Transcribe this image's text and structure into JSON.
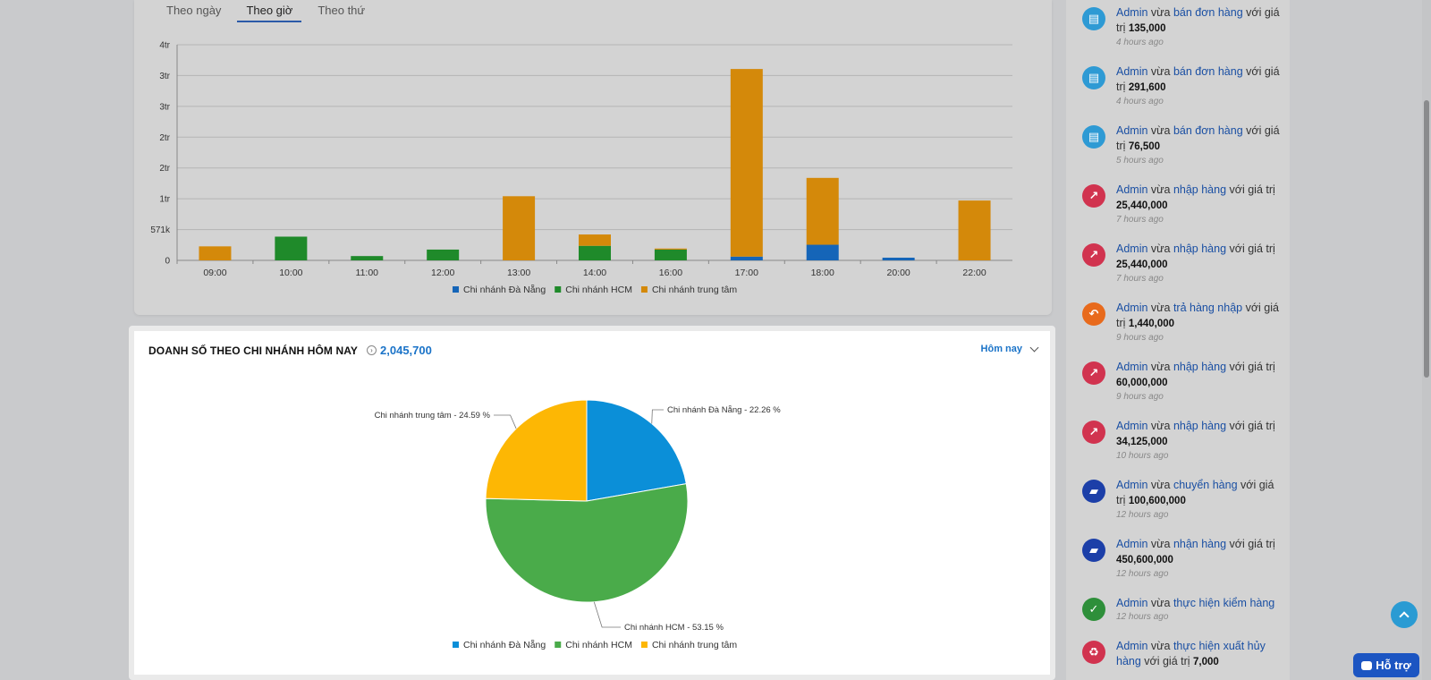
{
  "tabs": [
    "Theo ngày",
    "Theo giờ",
    "Theo thứ"
  ],
  "active_tab": 1,
  "chart_data": [
    {
      "type": "bar",
      "stacked": true,
      "categories": [
        "09:00",
        "10:00",
        "11:00",
        "12:00",
        "13:00",
        "14:00",
        "16:00",
        "17:00",
        "18:00",
        "20:00",
        "22:00"
      ],
      "y_tick_labels": [
        "0",
        "571k",
        "1tr",
        "2tr",
        "2tr",
        "3tr",
        "3tr",
        "4tr"
      ],
      "ylim": [
        0,
        4000000
      ],
      "series": [
        {
          "name": "Chi nhánh Đà Nẵng",
          "color": "#1565b8",
          "values": [
            0,
            0,
            0,
            0,
            0,
            0,
            0,
            70000,
            290000,
            50000,
            0
          ]
        },
        {
          "name": "Chi nhánh HCM",
          "color": "#1f8a2a",
          "values": [
            0,
            440000,
            80000,
            200000,
            0,
            270000,
            200000,
            0,
            0,
            0,
            0
          ]
        },
        {
          "name": "Chi nhánh trung tâm",
          "color": "#d4890a",
          "values": [
            260000,
            0,
            0,
            0,
            1190000,
            210000,
            20000,
            3480000,
            1240000,
            0,
            1110000
          ]
        }
      ],
      "legend_position": "bottom",
      "grid": true
    },
    {
      "type": "pie",
      "slices": [
        {
          "label": "Chi nhánh Đà Nẵng - 22.26 %",
          "name": "Chi nhánh Đà Nẵng",
          "value": 22.26,
          "color": "#0b8fd8"
        },
        {
          "label": "Chi nhánh HCM - 53.15 %",
          "name": "Chi nhánh HCM",
          "value": 53.15,
          "color": "#4aab4a"
        },
        {
          "label": "Chi nhánh trung tâm - 24.59 %",
          "name": "Chi nhánh trung tâm",
          "value": 24.59,
          "color": "#fdb704"
        }
      ],
      "legend_position": "bottom"
    }
  ],
  "pie_card": {
    "title": "DOANH SỐ THEO CHI NHÁNH HÔM NAY",
    "total": "2,045,700",
    "period": "Hôm nay"
  },
  "feed": [
    {
      "icon": "document-icon",
      "color": "#2e9ad4",
      "user": "Admin",
      "pre": "vừa",
      "action": "bán đơn hàng",
      "post": "với giá trị",
      "value": "135,000",
      "time": "4 hours ago"
    },
    {
      "icon": "document-icon",
      "color": "#2e9ad4",
      "user": "Admin",
      "pre": "vừa",
      "action": "bán đơn hàng",
      "post": "với giá trị",
      "value": "291,600",
      "time": "4 hours ago"
    },
    {
      "icon": "document-icon",
      "color": "#2e9ad4",
      "user": "Admin",
      "pre": "vừa",
      "action": "bán đơn hàng",
      "post": "với giá trị",
      "value": "76,500",
      "time": "5 hours ago"
    },
    {
      "icon": "import-icon",
      "color": "#d1334f",
      "user": "Admin",
      "pre": "vừa",
      "action": "nhập hàng",
      "post": "với giá trị",
      "value": "25,440,000",
      "time": "7 hours ago"
    },
    {
      "icon": "import-icon",
      "color": "#d1334f",
      "user": "Admin",
      "pre": "vừa",
      "action": "nhập hàng",
      "post": "với giá trị",
      "value": "25,440,000",
      "time": "7 hours ago"
    },
    {
      "icon": "return-icon",
      "color": "#e86a1c",
      "user": "Admin",
      "pre": "vừa",
      "action": "trả hàng nhập",
      "post": "với giá trị",
      "value": "1,440,000",
      "time": "9 hours ago"
    },
    {
      "icon": "import-icon",
      "color": "#d1334f",
      "user": "Admin",
      "pre": "vừa",
      "action": "nhập hàng",
      "post": "với giá trị",
      "value": "60,000,000",
      "time": "9 hours ago"
    },
    {
      "icon": "import-icon",
      "color": "#d1334f",
      "user": "Admin",
      "pre": "vừa",
      "action": "nhập hàng",
      "post": "với giá trị",
      "value": "34,125,000",
      "time": "10 hours ago"
    },
    {
      "icon": "truck-icon",
      "color": "#1c3fa8",
      "user": "Admin",
      "pre": "vừa",
      "action": "chuyển hàng",
      "post": "với giá trị",
      "value": "100,600,000",
      "time": "12 hours ago"
    },
    {
      "icon": "truck-icon",
      "color": "#1c3fa8",
      "user": "Admin",
      "pre": "vừa",
      "action": "nhận hàng",
      "post": "với giá trị",
      "value": "450,600,000",
      "time": "12 hours ago"
    },
    {
      "icon": "check-icon",
      "color": "#2e8f3a",
      "user": "Admin",
      "pre": "vừa",
      "action": "thực hiện kiểm hàng",
      "post": "",
      "value": "",
      "time": "12 hours ago"
    },
    {
      "icon": "recycle-icon",
      "color": "#d1334f",
      "user": "Admin",
      "pre": "vừa",
      "action": "thực hiện xuất hủy hàng",
      "post": "với giá trị",
      "value": "7,000",
      "time": ""
    }
  ],
  "support_label": "Hỗ trợ"
}
